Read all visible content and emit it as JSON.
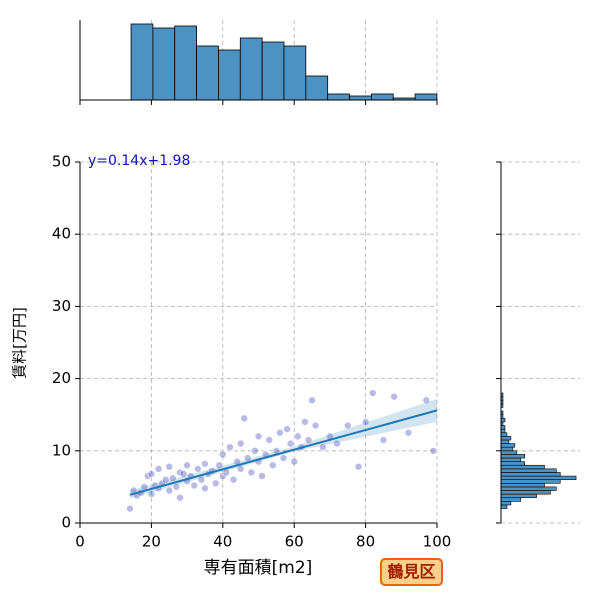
{
  "chart_data": [
    {
      "type": "scatter",
      "xlabel": "専有面積[m2]",
      "ylabel": "賃料[万円]",
      "annotation": "y=0.14x+1.98",
      "xlim": [
        0,
        100
      ],
      "ylim": [
        0,
        50
      ],
      "xticks": [
        0,
        20,
        40,
        60,
        80,
        100
      ],
      "yticks": [
        0,
        10,
        20,
        30,
        40,
        50
      ],
      "grid": true,
      "color": "#3a3ab8",
      "x": [
        14,
        15,
        16,
        17,
        18,
        19,
        20,
        20,
        21,
        22,
        22,
        23,
        24,
        25,
        25,
        26,
        27,
        28,
        28,
        29,
        30,
        30,
        31,
        32,
        33,
        34,
        35,
        35,
        36,
        37,
        38,
        39,
        40,
        40,
        41,
        42,
        43,
        44,
        45,
        45,
        46,
        47,
        48,
        49,
        50,
        50,
        51,
        52,
        53,
        54,
        55,
        56,
        57,
        58,
        59,
        60,
        61,
        62,
        63,
        64,
        65,
        66,
        68,
        70,
        72,
        75,
        78,
        80,
        82,
        85,
        88,
        92,
        97,
        99
      ],
      "values": [
        2.0,
        4.5,
        3.8,
        4.2,
        5.0,
        6.5,
        4.0,
        6.8,
        5.2,
        7.5,
        4.8,
        5.5,
        6.0,
        4.5,
        7.8,
        6.2,
        5.0,
        7.0,
        3.5,
        6.8,
        5.8,
        8.0,
        6.5,
        5.2,
        7.5,
        6.0,
        8.2,
        4.8,
        6.8,
        7.2,
        5.5,
        8.0,
        6.5,
        9.5,
        7.0,
        10.5,
        6.0,
        8.5,
        11.0,
        7.5,
        14.5,
        9.0,
        7.0,
        10.0,
        8.5,
        12.0,
        6.5,
        9.5,
        11.5,
        8.0,
        10.0,
        12.5,
        9.0,
        13.0,
        11.0,
        8.5,
        12.0,
        10.5,
        14.0,
        11.5,
        17.0,
        13.5,
        10.5,
        12.0,
        11.0,
        13.5,
        7.8,
        14.0,
        18.0,
        11.5,
        17.5,
        12.5,
        17.0,
        10.0
      ],
      "fit": {
        "color": "#1f77b4",
        "x": [
          14,
          100
        ],
        "values": [
          3.9,
          15.6
        ],
        "band_x": [
          14,
          60,
          100
        ],
        "band_lower": [
          3.4,
          9.9,
          14.0
        ],
        "band_upper": [
          4.5,
          10.6,
          17.2
        ]
      }
    },
    {
      "type": "histogram",
      "xlim": [
        0,
        100
      ],
      "ylim": [
        0,
        40
      ],
      "xticks": [
        0,
        20,
        40,
        60,
        80,
        100
      ],
      "grid": true,
      "color": "#4c92c3",
      "bins": [
        14.3,
        20.42,
        26.54,
        32.66,
        38.78,
        44.9,
        51.02,
        57.14,
        63.26,
        69.38,
        75.5,
        81.62,
        87.74,
        93.86,
        99.98
      ],
      "counts": [
        38,
        36,
        37,
        27,
        25,
        31,
        29,
        27,
        12,
        3,
        2,
        3,
        1,
        3
      ]
    },
    {
      "type": "histogram",
      "orientation": "horizontal",
      "xlim": [
        0,
        40
      ],
      "ylim": [
        0,
        50
      ],
      "yticks": [
        0,
        10,
        20,
        30,
        40,
        50
      ],
      "grid": true,
      "color": "#4c92c3",
      "bins": [
        2,
        2.5,
        3,
        3.5,
        4,
        4.5,
        5,
        5.5,
        6,
        6.5,
        7,
        7.5,
        8,
        8.5,
        9,
        9.5,
        10,
        10.5,
        11,
        11.5,
        12,
        12.5,
        13,
        13.5,
        14,
        14.5,
        15,
        15.5,
        16,
        16.5,
        17,
        17.5,
        18
      ],
      "counts": [
        3,
        5,
        10,
        18,
        25,
        28,
        22,
        30,
        38,
        30,
        28,
        22,
        12,
        10,
        12,
        8,
        6,
        7,
        4,
        5,
        3,
        2,
        2,
        1,
        2,
        1,
        1,
        0,
        1,
        1,
        1,
        1
      ]
    }
  ],
  "badge": "鶴見区"
}
